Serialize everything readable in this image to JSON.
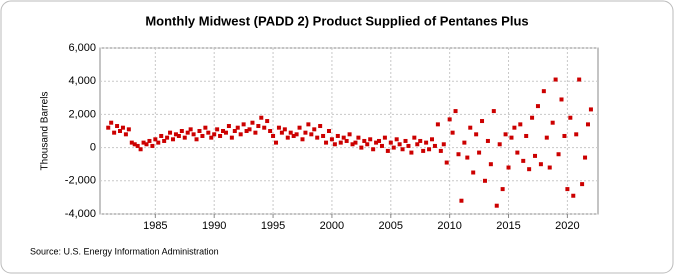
{
  "chart_data": {
    "type": "scatter",
    "title": "Monthly Midwest (PADD 2) Product Supplied of Pentanes Plus",
    "ylabel": "Thousand Barrels",
    "source": "Source: U.S. Energy Information Administration",
    "color": "#cc0000",
    "grid": true,
    "xlim": [
      1980.3,
      2022.6
    ],
    "ylim": [
      -4000,
      6000
    ],
    "xticks": [
      1985,
      1990,
      1995,
      2000,
      2005,
      2010,
      2015,
      2020
    ],
    "yticks": [
      {
        "value": -4000,
        "label": "-4,000"
      },
      {
        "value": -2000,
        "label": "-2,000"
      },
      0,
      {
        "value": 2000,
        "label": "2,000"
      },
      {
        "value": 4000,
        "label": "4,000"
      },
      {
        "value": 6000,
        "label": "6,000"
      }
    ],
    "x": [
      1981,
      1981.25,
      1981.5,
      1981.75,
      1982,
      1982.25,
      1982.5,
      1982.75,
      1983,
      1983.25,
      1983.5,
      1983.75,
      1984,
      1984.25,
      1984.5,
      1984.75,
      1985,
      1985.25,
      1985.5,
      1985.75,
      1986,
      1986.25,
      1986.5,
      1986.75,
      1987,
      1987.25,
      1987.5,
      1987.75,
      1988,
      1988.25,
      1988.5,
      1988.75,
      1989,
      1989.25,
      1989.5,
      1989.75,
      1990,
      1990.25,
      1990.5,
      1990.75,
      1991,
      1991.25,
      1991.5,
      1991.75,
      1992,
      1992.25,
      1992.5,
      1992.75,
      1993,
      1993.25,
      1993.5,
      1993.75,
      1994,
      1994.25,
      1994.5,
      1994.75,
      1995,
      1995.25,
      1995.5,
      1995.75,
      1996,
      1996.25,
      1996.5,
      1996.75,
      1997,
      1997.25,
      1997.5,
      1997.75,
      1998,
      1998.25,
      1998.5,
      1998.75,
      1999,
      1999.25,
      1999.5,
      1999.75,
      2000,
      2000.25,
      2000.5,
      2000.75,
      2001,
      2001.25,
      2001.5,
      2001.75,
      2002,
      2002.25,
      2002.5,
      2002.75,
      2003,
      2003.25,
      2003.5,
      2003.75,
      2004,
      2004.25,
      2004.5,
      2004.75,
      2005,
      2005.25,
      2005.5,
      2005.75,
      2006,
      2006.25,
      2006.5,
      2006.75,
      2007,
      2007.25,
      2007.5,
      2007.75,
      2008,
      2008.25,
      2008.5,
      2008.75,
      2009,
      2009.25,
      2009.5,
      2009.75,
      2010,
      2010.25,
      2010.5,
      2010.75,
      2011,
      2011.25,
      2011.5,
      2011.75,
      2012,
      2012.25,
      2012.5,
      2012.75,
      2013,
      2013.25,
      2013.5,
      2013.75,
      2014,
      2014.25,
      2014.5,
      2014.75,
      2015,
      2015.25,
      2015.5,
      2015.75,
      2016,
      2016.25,
      2016.5,
      2016.75,
      2017,
      2017.25,
      2017.5,
      2017.75,
      2018,
      2018.25,
      2018.5,
      2018.75,
      2019,
      2019.25,
      2019.5,
      2019.75,
      2020,
      2020.25,
      2020.5,
      2020.75,
      2021,
      2021.25,
      2021.5,
      2021.75,
      2022
    ],
    "values": [
      1200,
      1500,
      900,
      1300,
      1000,
      1200,
      800,
      1100,
      300,
      200,
      100,
      -100,
      300,
      200,
      400,
      100,
      500,
      300,
      700,
      400,
      600,
      900,
      500,
      800,
      700,
      1000,
      600,
      900,
      1100,
      800,
      500,
      1000,
      700,
      1200,
      900,
      600,
      800,
      1100,
      700,
      1000,
      900,
      1300,
      600,
      1000,
      1200,
      800,
      1400,
      1000,
      1100,
      1500,
      900,
      1300,
      1800,
      1200,
      1600,
      1000,
      700,
      300,
      1200,
      900,
      1100,
      600,
      900,
      700,
      800,
      1200,
      500,
      900,
      1400,
      800,
      1100,
      600,
      1300,
      700,
      300,
      1000,
      500,
      200,
      700,
      300,
      600,
      400,
      800,
      200,
      300,
      600,
      0,
      400,
      200,
      500,
      -100,
      300,
      400,
      100,
      600,
      -200,
      300,
      0,
      500,
      200,
      -100,
      400,
      100,
      -300,
      600,
      200,
      400,
      -200,
      300,
      -100,
      500,
      100,
      1400,
      -200,
      200,
      -900,
      1700,
      900,
      2200,
      -400,
      -3200,
      300,
      -600,
      1200,
      -1500,
      800,
      -300,
      1600,
      -2000,
      400,
      -1000,
      2200,
      -3500,
      200,
      -2500,
      800,
      -1200,
      600,
      1200,
      -300,
      1400,
      -800,
      700,
      -1300,
      1800,
      -500,
      2500,
      -1000,
      3400,
      600,
      -1200,
      1500,
      4100,
      -400,
      2900,
      700,
      -2500,
      1800,
      -2900,
      800,
      4100,
      -2200,
      -600,
      1400,
      2300
    ]
  }
}
